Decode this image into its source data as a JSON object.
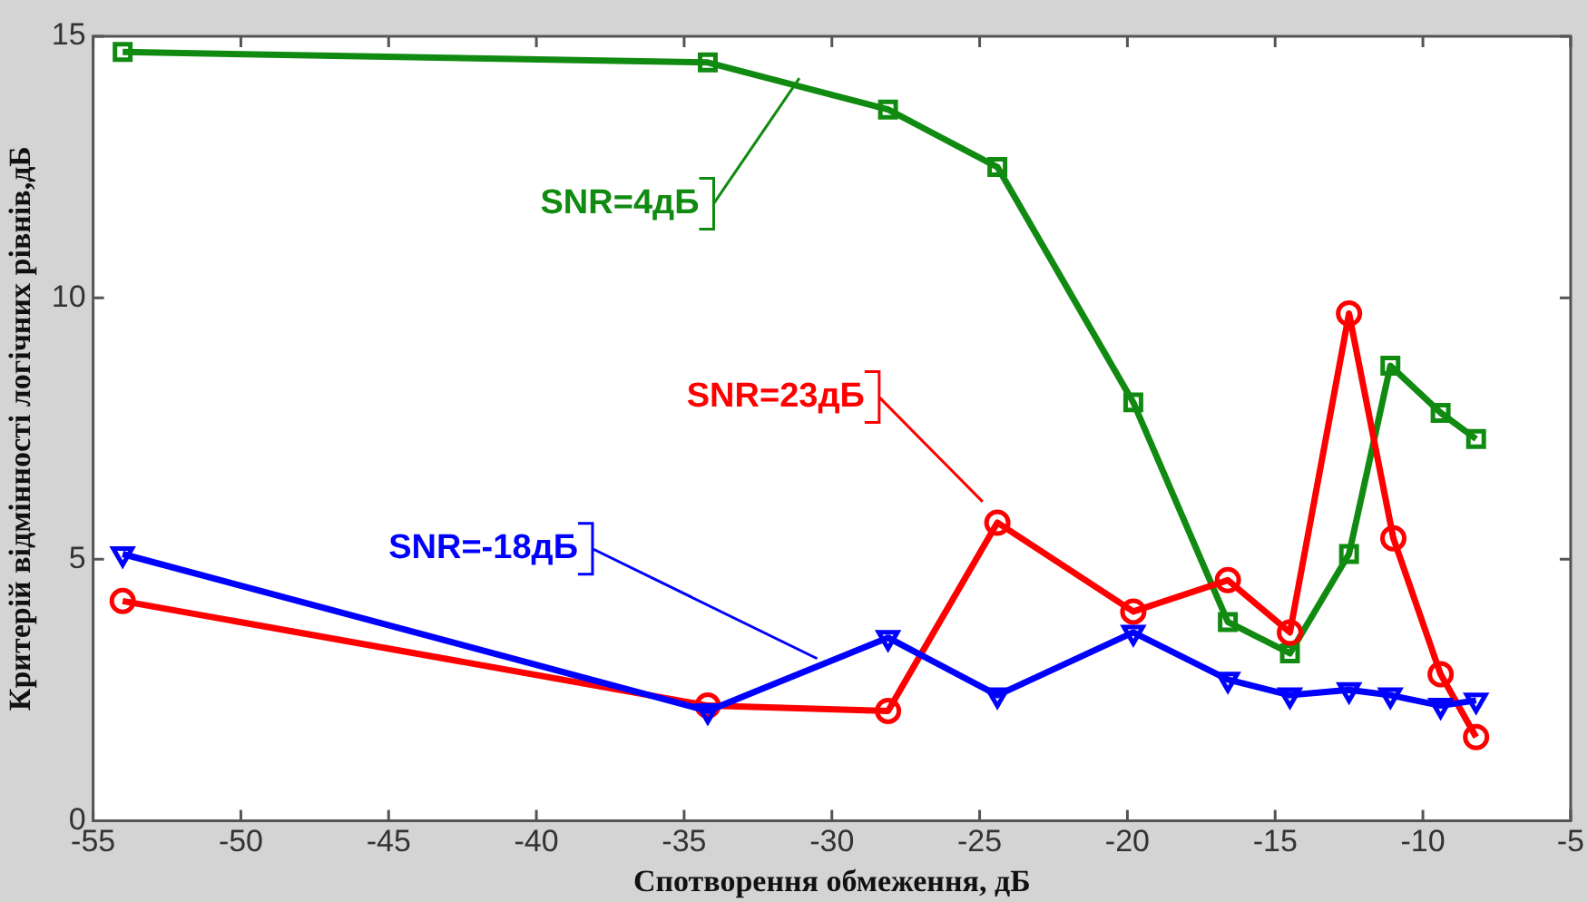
{
  "chart_data": {
    "type": "line",
    "xlabel": "Спотворення обмеження, дБ",
    "ylabel": "Критерій відмінності логічних рівнів,дБ",
    "xlim": [
      -55,
      -5
    ],
    "xticks": [
      -55,
      -50,
      -45,
      -40,
      -35,
      -30,
      -25,
      -20,
      -15,
      -10,
      -5
    ],
    "ylim": [
      0,
      15
    ],
    "yticks": [
      0,
      5,
      10,
      15
    ],
    "grid": false,
    "legend": "top left",
    "series": [
      {
        "name": "SNR=4дБ",
        "color": "#108a10",
        "marker": "square",
        "x": [
          -54,
          -34.2,
          -28.1,
          -24.4,
          -19.8,
          -16.6,
          -14.5,
          -12.5,
          -11.1,
          -9.4,
          -8.2
        ],
        "values": [
          14.7,
          14.5,
          13.6,
          12.5,
          8.0,
          3.8,
          3.2,
          5.1,
          8.7,
          7.8,
          7.3
        ]
      },
      {
        "name": "SNR=23дБ",
        "color": "#ff0000",
        "marker": "circle",
        "x": [
          -54,
          -34.2,
          -28.1,
          -24.4,
          -19.8,
          -16.6,
          -14.5,
          -12.5,
          -11.0,
          -9.4,
          -8.2
        ],
        "values": [
          4.2,
          2.2,
          2.1,
          5.7,
          4.0,
          4.6,
          3.6,
          9.7,
          5.4,
          2.8,
          1.6
        ]
      },
      {
        "name": "SNR=-18дБ",
        "color": "#0000ff",
        "marker": "triangle",
        "x": [
          -54,
          -34.2,
          -28.1,
          -24.4,
          -19.8,
          -16.6,
          -14.5,
          -12.5,
          -11.1,
          -9.4,
          -8.2
        ],
        "values": [
          5.1,
          2.1,
          3.5,
          2.4,
          3.6,
          2.7,
          2.4,
          2.5,
          2.4,
          2.2,
          2.3
        ]
      }
    ]
  }
}
